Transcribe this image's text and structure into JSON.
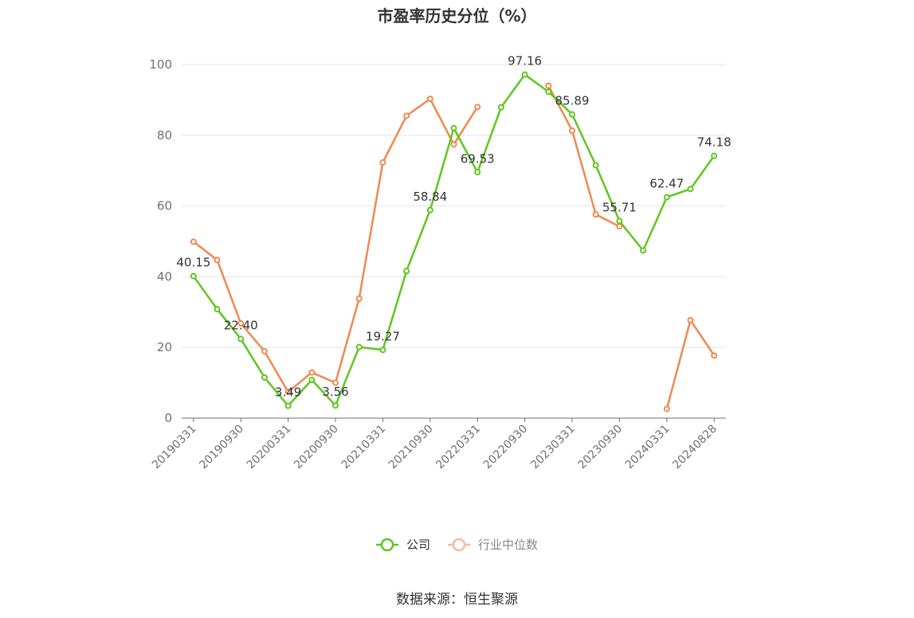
{
  "chart_data": {
    "type": "line",
    "title": "市盈率历史分位（%）",
    "x": [
      "20190331",
      "20190630",
      "20190930",
      "20191231",
      "20200331",
      "20200630",
      "20200930",
      "20201231",
      "20210331",
      "20210630",
      "20210930",
      "20211231",
      "20220331",
      "20220630",
      "20220930",
      "20221231",
      "20230331",
      "20230630",
      "20230930",
      "20231231",
      "20240331",
      "20240630",
      "20240828"
    ],
    "x_tick_labels": [
      "20190331",
      "20190930",
      "20200331",
      "20200930",
      "20210331",
      "20210930",
      "20220331",
      "20220930",
      "20230331",
      "20230930",
      "20240331",
      "20240828"
    ],
    "ylim": [
      0,
      100
    ],
    "y_ticks": [
      0,
      20,
      40,
      60,
      80,
      100
    ],
    "grid": true,
    "legend_position": "bottom",
    "series": [
      {
        "name": "公司",
        "color": "#5fc620",
        "values": [
          40.15,
          30.8,
          22.4,
          11.5,
          3.49,
          10.8,
          3.56,
          20.1,
          19.27,
          41.6,
          58.84,
          82.0,
          69.53,
          87.9,
          97.16,
          92.3,
          85.89,
          71.5,
          55.71,
          47.4,
          62.47,
          64.8,
          74.18
        ],
        "labels": [
          "40.15",
          null,
          "22.40",
          null,
          "3.49",
          null,
          "3.56",
          null,
          "19.27",
          null,
          "58.84",
          null,
          "69.53",
          null,
          "97.16",
          null,
          "85.89",
          null,
          "55.71",
          null,
          "62.47",
          null,
          "74.18"
        ]
      },
      {
        "name": "行业中位数",
        "color": "#f0894f",
        "values": [
          49.9,
          44.7,
          26.8,
          18.9,
          7.4,
          12.9,
          10.0,
          33.8,
          72.3,
          85.5,
          90.3,
          77.4,
          88.0,
          null,
          null,
          94.0,
          81.3,
          57.6,
          54.2,
          null,
          2.6,
          27.7,
          17.7
        ]
      }
    ]
  },
  "source_text": "数据来源：恒生聚源"
}
